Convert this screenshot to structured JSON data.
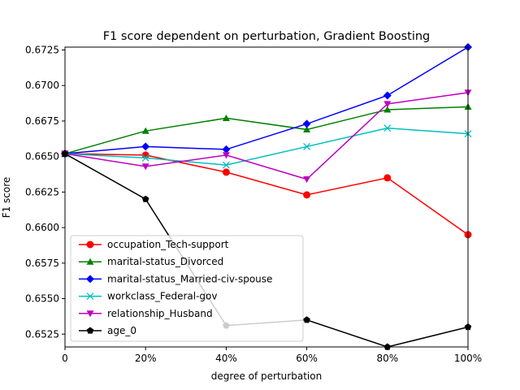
{
  "chart_data": {
    "type": "line",
    "title": "F1 score dependent on perturbation, Gradient Boosting",
    "xlabel": "degree of perturbation",
    "ylabel": "F1 score",
    "x": [
      0,
      20,
      40,
      60,
      80,
      100
    ],
    "x_tick_labels": [
      "0",
      "20%",
      "40%",
      "60%",
      "80%",
      "100%"
    ],
    "xlim": [
      0,
      100
    ],
    "ylim": [
      0.6516,
      0.6727
    ],
    "y_ticks": [
      0.6525,
      0.655,
      0.6575,
      0.66,
      0.6625,
      0.665,
      0.6675,
      0.67,
      0.6725
    ],
    "y_tick_labels": [
      "0.6525",
      "0.6550",
      "0.6575",
      "0.6600",
      "0.6625",
      "0.6650",
      "0.6675",
      "0.6700",
      "0.6725"
    ],
    "grid": false,
    "legend_position": "lower-left",
    "series": [
      {
        "name": "occupation_Tech-support",
        "color": "#ff0000",
        "marker": "circle",
        "values": [
          0.6652,
          0.6651,
          0.6639,
          0.6623,
          0.6635,
          0.6595
        ]
      },
      {
        "name": "marital-status_Divorced",
        "color": "#008000",
        "marker": "triangle-up",
        "values": [
          0.6652,
          0.6668,
          0.6677,
          0.6669,
          0.6683,
          0.6685
        ]
      },
      {
        "name": "marital-status_Married-civ-spouse",
        "color": "#0000ff",
        "marker": "diamond",
        "values": [
          0.6652,
          0.6657,
          0.6655,
          0.6673,
          0.6693,
          0.6727
        ]
      },
      {
        "name": "workclass_Federal-gov",
        "color": "#00bfbf",
        "marker": "x",
        "values": [
          0.6652,
          0.6649,
          0.6644,
          0.6657,
          0.667,
          0.6666
        ]
      },
      {
        "name": "relationship_Husband",
        "color": "#bf00bf",
        "marker": "triangle-down",
        "values": [
          0.6652,
          0.6643,
          0.6651,
          0.6634,
          0.6687,
          0.6695
        ]
      },
      {
        "name": "age_0",
        "color": "#000000",
        "marker": "pentagon",
        "values": [
          0.6652,
          0.662,
          0.6531,
          0.6535,
          0.6516,
          0.653
        ]
      }
    ]
  }
}
